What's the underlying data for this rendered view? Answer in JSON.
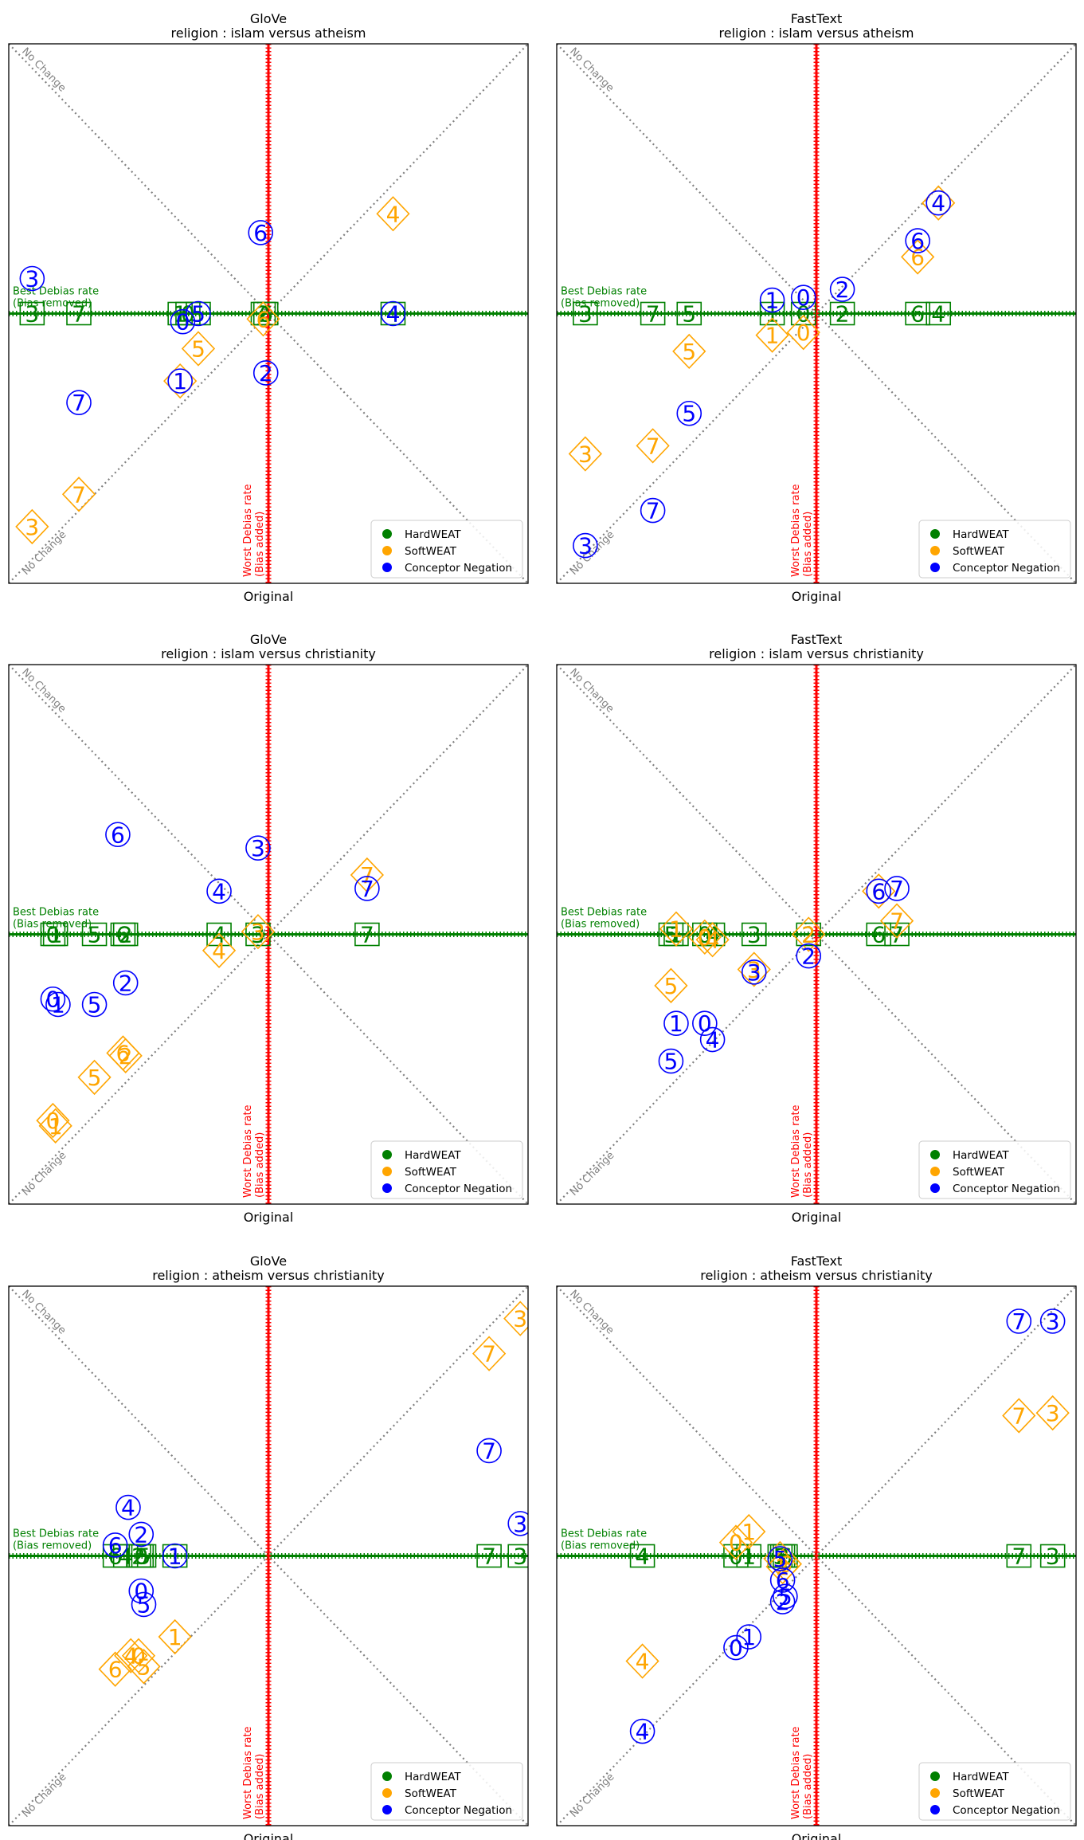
{
  "legend_labels": [
    "HardWEAT",
    "SoftWEAT",
    "Conceptor Negation"
  ],
  "colors": {
    "hard": "#008000",
    "soft": "#ffa500",
    "conceptor": "#0000ff",
    "worst": "#ff0000",
    "nochange": "#808080"
  },
  "annotations": {
    "no_change": "No Change",
    "best_line1": "Best Debias rate",
    "best_line2": "(Bias removed)",
    "worst_line1": "Worst Debias rate",
    "worst_line2": "(Bias added)"
  },
  "chart_data": [
    {
      "type": "scatter",
      "title": "GloVe",
      "subtitle": "religion : islam versus atheism",
      "xlabel": "Original",
      "ylabel": "",
      "xlim": [
        -1,
        1
      ],
      "ylim": [
        -1,
        1
      ],
      "legend": "lower-right",
      "series": [
        {
          "name": "HardWEAT",
          "marker": "square",
          "points": [
            {
              "label": "3",
              "x": -0.91,
              "y": 0.0
            },
            {
              "label": "7",
              "x": -0.73,
              "y": 0.0
            },
            {
              "label": "1",
              "x": -0.34,
              "y": 0.0
            },
            {
              "label": "5",
              "x": -0.27,
              "y": 0.0
            },
            {
              "label": "0",
              "x": -0.31,
              "y": 0.0
            },
            {
              "label": "6",
              "x": -0.01,
              "y": 0.0
            },
            {
              "label": "2",
              "x": -0.02,
              "y": 0.0
            },
            {
              "label": "4",
              "x": 0.48,
              "y": 0.0
            }
          ]
        },
        {
          "name": "SoftWEAT",
          "marker": "diamond",
          "points": [
            {
              "label": "4",
              "x": 0.48,
              "y": 0.37
            },
            {
              "label": "6",
              "x": -0.02,
              "y": -0.02
            },
            {
              "label": "5",
              "x": -0.27,
              "y": -0.13
            },
            {
              "label": "1",
              "x": -0.34,
              "y": -0.25
            },
            {
              "label": "7",
              "x": -0.73,
              "y": -0.67
            },
            {
              "label": "3",
              "x": -0.91,
              "y": -0.79
            }
          ]
        },
        {
          "name": "Conceptor Negation",
          "marker": "circle",
          "points": [
            {
              "label": "6",
              "x": -0.03,
              "y": 0.3
            },
            {
              "label": "3",
              "x": -0.91,
              "y": 0.13
            },
            {
              "label": "4",
              "x": 0.48,
              "y": 0.0
            },
            {
              "label": "0",
              "x": -0.33,
              "y": -0.03
            },
            {
              "label": "5",
              "x": -0.27,
              "y": 0.0
            },
            {
              "label": "2",
              "x": -0.01,
              "y": -0.22
            },
            {
              "label": "1",
              "x": -0.34,
              "y": -0.25
            },
            {
              "label": "7",
              "x": -0.73,
              "y": -0.33
            }
          ]
        }
      ]
    },
    {
      "type": "scatter",
      "title": "FastText",
      "subtitle": "religion : islam versus atheism",
      "xlabel": "Original",
      "ylabel": "",
      "xlim": [
        -1,
        1
      ],
      "ylim": [
        -1,
        1
      ],
      "legend": "lower-right",
      "series": [
        {
          "name": "HardWEAT",
          "marker": "square",
          "points": [
            {
              "label": "3",
              "x": -0.89,
              "y": 0.0
            },
            {
              "label": "7",
              "x": -0.63,
              "y": 0.0
            },
            {
              "label": "5",
              "x": -0.49,
              "y": 0.0
            },
            {
              "label": "1",
              "x": -0.17,
              "y": 0.0
            },
            {
              "label": "0",
              "x": -0.05,
              "y": 0.0
            },
            {
              "label": "2",
              "x": 0.1,
              "y": 0.0
            },
            {
              "label": "6",
              "x": 0.39,
              "y": 0.0
            },
            {
              "label": "4",
              "x": 0.47,
              "y": 0.0
            }
          ]
        },
        {
          "name": "SoftWEAT",
          "marker": "diamond",
          "points": [
            {
              "label": "4",
              "x": 0.47,
              "y": 0.41
            },
            {
              "label": "6",
              "x": 0.39,
              "y": 0.21
            },
            {
              "label": "1",
              "x": -0.17,
              "y": -0.08
            },
            {
              "label": "0",
              "x": -0.05,
              "y": -0.07
            },
            {
              "label": "5",
              "x": -0.49,
              "y": -0.14
            },
            {
              "label": "7",
              "x": -0.63,
              "y": -0.49
            },
            {
              "label": "3",
              "x": -0.89,
              "y": -0.52
            }
          ]
        },
        {
          "name": "Conceptor Negation",
          "marker": "circle",
          "points": [
            {
              "label": "4",
              "x": 0.47,
              "y": 0.41
            },
            {
              "label": "6",
              "x": 0.39,
              "y": 0.27
            },
            {
              "label": "2",
              "x": 0.1,
              "y": 0.09
            },
            {
              "label": "1",
              "x": -0.17,
              "y": 0.05
            },
            {
              "label": "0",
              "x": -0.05,
              "y": 0.06
            },
            {
              "label": "5",
              "x": -0.49,
              "y": -0.37
            },
            {
              "label": "7",
              "x": -0.63,
              "y": -0.73
            },
            {
              "label": "3",
              "x": -0.89,
              "y": -0.86
            }
          ]
        }
      ]
    },
    {
      "type": "scatter",
      "title": "GloVe",
      "subtitle": "religion : islam versus christianity",
      "xlabel": "Original",
      "ylabel": "",
      "xlim": [
        -1,
        1
      ],
      "ylim": [
        -1,
        1
      ],
      "legend": "lower-right",
      "series": [
        {
          "name": "HardWEAT",
          "marker": "square",
          "points": [
            {
              "label": "1",
              "x": -0.82,
              "y": 0.0
            },
            {
              "label": "0",
              "x": -0.83,
              "y": 0.0
            },
            {
              "label": "5",
              "x": -0.67,
              "y": 0.0
            },
            {
              "label": "6",
              "x": -0.56,
              "y": 0.0
            },
            {
              "label": "2",
              "x": -0.55,
              "y": 0.0
            },
            {
              "label": "4",
              "x": -0.19,
              "y": 0.0
            },
            {
              "label": "3",
              "x": -0.04,
              "y": 0.0
            },
            {
              "label": "7",
              "x": 0.38,
              "y": 0.0
            }
          ]
        },
        {
          "name": "SoftWEAT",
          "marker": "diamond",
          "points": [
            {
              "label": "7",
              "x": 0.38,
              "y": 0.22
            },
            {
              "label": "3",
              "x": -0.04,
              "y": 0.01
            },
            {
              "label": "4",
              "x": -0.19,
              "y": -0.06
            },
            {
              "label": "6",
              "x": -0.56,
              "y": -0.44
            },
            {
              "label": "2",
              "x": -0.55,
              "y": -0.45
            },
            {
              "label": "5",
              "x": -0.67,
              "y": -0.53
            },
            {
              "label": "0",
              "x": -0.83,
              "y": -0.69
            },
            {
              "label": "1",
              "x": -0.82,
              "y": -0.71
            }
          ]
        },
        {
          "name": "Conceptor Negation",
          "marker": "circle",
          "points": [
            {
              "label": "6",
              "x": -0.58,
              "y": 0.37
            },
            {
              "label": "3",
              "x": -0.04,
              "y": 0.32
            },
            {
              "label": "4",
              "x": -0.19,
              "y": 0.16
            },
            {
              "label": "7",
              "x": 0.38,
              "y": 0.17
            },
            {
              "label": "2",
              "x": -0.55,
              "y": -0.18
            },
            {
              "label": "0",
              "x": -0.83,
              "y": -0.24
            },
            {
              "label": "1",
              "x": -0.81,
              "y": -0.26
            },
            {
              "label": "5",
              "x": -0.67,
              "y": -0.26
            }
          ]
        }
      ]
    },
    {
      "type": "scatter",
      "title": "FastText",
      "subtitle": "religion : islam versus christianity",
      "xlabel": "Original",
      "ylabel": "",
      "xlim": [
        -1,
        1
      ],
      "ylim": [
        -1,
        1
      ],
      "legend": "lower-right",
      "series": [
        {
          "name": "HardWEAT",
          "marker": "square",
          "points": [
            {
              "label": "5",
              "x": -0.56,
              "y": 0.0
            },
            {
              "label": "1",
              "x": -0.54,
              "y": 0.0
            },
            {
              "label": "0",
              "x": -0.43,
              "y": 0.0
            },
            {
              "label": "4",
              "x": -0.4,
              "y": 0.0
            },
            {
              "label": "3",
              "x": -0.24,
              "y": 0.0
            },
            {
              "label": "2",
              "x": -0.03,
              "y": 0.0
            },
            {
              "label": "6",
              "x": 0.24,
              "y": 0.0
            },
            {
              "label": "7",
              "x": 0.31,
              "y": 0.0
            }
          ]
        },
        {
          "name": "SoftWEAT",
          "marker": "diamond",
          "points": [
            {
              "label": "6",
              "x": 0.24,
              "y": 0.16
            },
            {
              "label": "7",
              "x": 0.31,
              "y": 0.05
            },
            {
              "label": "1",
              "x": -0.54,
              "y": 0.02
            },
            {
              "label": "0",
              "x": -0.43,
              "y": -0.01
            },
            {
              "label": "4",
              "x": -0.4,
              "y": -0.02
            },
            {
              "label": "2",
              "x": -0.03,
              "y": 0.0
            },
            {
              "label": "3",
              "x": -0.24,
              "y": -0.13
            },
            {
              "label": "5",
              "x": -0.56,
              "y": -0.19
            }
          ]
        },
        {
          "name": "Conceptor Negation",
          "marker": "circle",
          "points": [
            {
              "label": "6",
              "x": 0.24,
              "y": 0.16
            },
            {
              "label": "7",
              "x": 0.31,
              "y": 0.17
            },
            {
              "label": "2",
              "x": -0.03,
              "y": -0.08
            },
            {
              "label": "3",
              "x": -0.24,
              "y": -0.14
            },
            {
              "label": "1",
              "x": -0.54,
              "y": -0.33
            },
            {
              "label": "0",
              "x": -0.43,
              "y": -0.33
            },
            {
              "label": "4",
              "x": -0.4,
              "y": -0.39
            },
            {
              "label": "5",
              "x": -0.56,
              "y": -0.47
            }
          ]
        }
      ]
    },
    {
      "type": "scatter",
      "title": "GloVe",
      "subtitle": "religion : atheism versus christianity",
      "xlabel": "Original",
      "ylabel": "",
      "xlim": [
        -1,
        1
      ],
      "ylim": [
        -1,
        1
      ],
      "legend": "lower-right",
      "series": [
        {
          "name": "HardWEAT",
          "marker": "square",
          "points": [
            {
              "label": "6",
              "x": -0.59,
              "y": 0.0
            },
            {
              "label": "4",
              "x": -0.55,
              "y": 0.0
            },
            {
              "label": "2",
              "x": -0.5,
              "y": 0.0
            },
            {
              "label": "0",
              "x": -0.49,
              "y": 0.0
            },
            {
              "label": "5",
              "x": -0.48,
              "y": 0.0
            },
            {
              "label": "1",
              "x": -0.36,
              "y": 0.0
            },
            {
              "label": "7",
              "x": 0.85,
              "y": 0.0
            },
            {
              "label": "3",
              "x": 0.97,
              "y": 0.0
            }
          ]
        },
        {
          "name": "SoftWEAT",
          "marker": "diamond",
          "points": [
            {
              "label": "3",
              "x": 0.97,
              "y": 0.88
            },
            {
              "label": "7",
              "x": 0.85,
              "y": 0.75
            },
            {
              "label": "1",
              "x": -0.36,
              "y": -0.3
            },
            {
              "label": "4",
              "x": -0.53,
              "y": -0.37
            },
            {
              "label": "0",
              "x": -0.5,
              "y": -0.37
            },
            {
              "label": "5",
              "x": -0.48,
              "y": -0.41
            },
            {
              "label": "6",
              "x": -0.59,
              "y": -0.42
            }
          ]
        },
        {
          "name": "Conceptor Negation",
          "marker": "circle",
          "points": [
            {
              "label": "7",
              "x": 0.85,
              "y": 0.39
            },
            {
              "label": "3",
              "x": 0.97,
              "y": 0.12
            },
            {
              "label": "4",
              "x": -0.54,
              "y": 0.18
            },
            {
              "label": "2",
              "x": -0.49,
              "y": 0.08
            },
            {
              "label": "6",
              "x": -0.59,
              "y": 0.04
            },
            {
              "label": "1",
              "x": -0.36,
              "y": 0.0
            },
            {
              "label": "0",
              "x": -0.49,
              "y": -0.13
            },
            {
              "label": "5",
              "x": -0.48,
              "y": -0.18
            }
          ]
        }
      ]
    },
    {
      "type": "scatter",
      "title": "FastText",
      "subtitle": "religion : atheism versus christianity",
      "xlabel": "Original",
      "ylabel": "",
      "xlim": [
        -1,
        1
      ],
      "ylim": [
        -1,
        1
      ],
      "legend": "lower-right",
      "series": [
        {
          "name": "HardWEAT",
          "marker": "square",
          "points": [
            {
              "label": "4",
              "x": -0.67,
              "y": 0.0
            },
            {
              "label": "0",
              "x": -0.31,
              "y": 0.0
            },
            {
              "label": "1",
              "x": -0.26,
              "y": 0.0
            },
            {
              "label": "5",
              "x": -0.14,
              "y": 0.0
            },
            {
              "label": "6",
              "x": -0.12,
              "y": 0.0
            },
            {
              "label": "2",
              "x": -0.13,
              "y": 0.0
            },
            {
              "label": "7",
              "x": 0.78,
              "y": 0.0
            },
            {
              "label": "3",
              "x": 0.91,
              "y": 0.0
            }
          ]
        },
        {
          "name": "SoftWEAT",
          "marker": "diamond",
          "points": [
            {
              "label": "3",
              "x": 0.91,
              "y": 0.53
            },
            {
              "label": "7",
              "x": 0.78,
              "y": 0.52
            },
            {
              "label": "1",
              "x": -0.26,
              "y": 0.09
            },
            {
              "label": "0",
              "x": -0.31,
              "y": 0.05
            },
            {
              "label": "5",
              "x": -0.14,
              "y": -0.01
            },
            {
              "label": "6",
              "x": -0.12,
              "y": -0.03
            },
            {
              "label": "2",
              "x": -0.13,
              "y": -0.04
            },
            {
              "label": "4",
              "x": -0.67,
              "y": -0.39
            }
          ]
        },
        {
          "name": "Conceptor Negation",
          "marker": "circle",
          "points": [
            {
              "label": "7",
              "x": 0.78,
              "y": 0.87
            },
            {
              "label": "3",
              "x": 0.91,
              "y": 0.87
            },
            {
              "label": "5",
              "x": -0.14,
              "y": -0.01
            },
            {
              "label": "6",
              "x": -0.13,
              "y": -0.09
            },
            {
              "label": "5",
              "x": -0.12,
              "y": -0.15
            },
            {
              "label": "2",
              "x": -0.13,
              "y": -0.17
            },
            {
              "label": "1",
              "x": -0.26,
              "y": -0.3
            },
            {
              "label": "0",
              "x": -0.31,
              "y": -0.34
            },
            {
              "label": "4",
              "x": -0.67,
              "y": -0.65
            }
          ]
        }
      ]
    }
  ]
}
